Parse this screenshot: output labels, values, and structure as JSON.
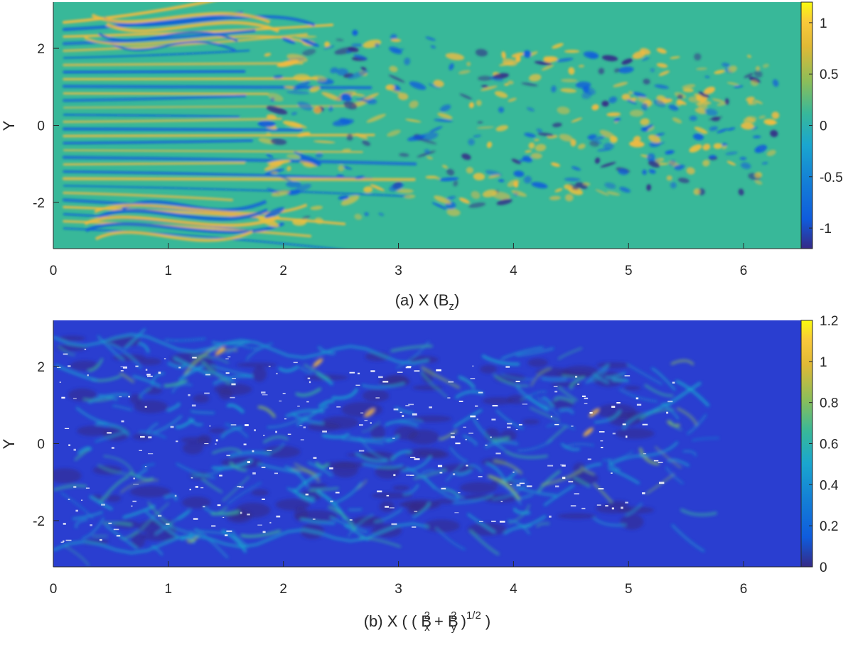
{
  "chart_data": [
    {
      "type": "heatmap",
      "panel": "a",
      "xlabel_parts": [
        "(a) X (B",
        "z",
        ")"
      ],
      "ylabel": "Y",
      "xlim": [
        0,
        6.5
      ],
      "ylim": [
        -3.2,
        3.2
      ],
      "xticks": [
        0,
        1,
        2,
        3,
        4,
        5,
        6
      ],
      "yticks": [
        2,
        0,
        -2
      ],
      "colorbar": {
        "limits": [
          -1.2,
          1.2
        ],
        "ticks": [
          1,
          0.5,
          0,
          -0.5,
          -1
        ],
        "tick_labels": [
          "1",
          "0.5",
          "0",
          "-0.5",
          "-1"
        ],
        "colormap": "parula"
      },
      "background_value": 0
    },
    {
      "type": "heatmap",
      "panel": "b",
      "xlabel_parts": [
        "(b) X ( ( B",
        "x",
        "2",
        " + B",
        "y",
        "2",
        " )",
        "1/2",
        " )"
      ],
      "ylabel": "Y",
      "xlim": [
        0,
        6.5
      ],
      "ylim": [
        -3.2,
        3.2
      ],
      "xticks": [
        0,
        1,
        2,
        3,
        4,
        5,
        6
      ],
      "yticks": [
        2,
        0,
        -2
      ],
      "colorbar": {
        "limits": [
          0,
          1.2
        ],
        "ticks": [
          1.2,
          1,
          0.8,
          0.6,
          0.4,
          0.2,
          0
        ],
        "tick_labels": [
          "1.2",
          "1",
          "0.8",
          "0.6",
          "0.4",
          "0.2",
          "0"
        ],
        "colormap": "parula"
      },
      "background_value": 0.05
    }
  ],
  "colors": {
    "parula_bottom": "#352a87",
    "parula_blue": "#0f5cdd",
    "parula_cyan": "#1aa6cf",
    "parula_teal": "#38b899",
    "parula_green": "#8cbe59",
    "parula_orange": "#f8ba3d",
    "parula_top": "#f9fb0e",
    "speck": "#ffffff"
  }
}
